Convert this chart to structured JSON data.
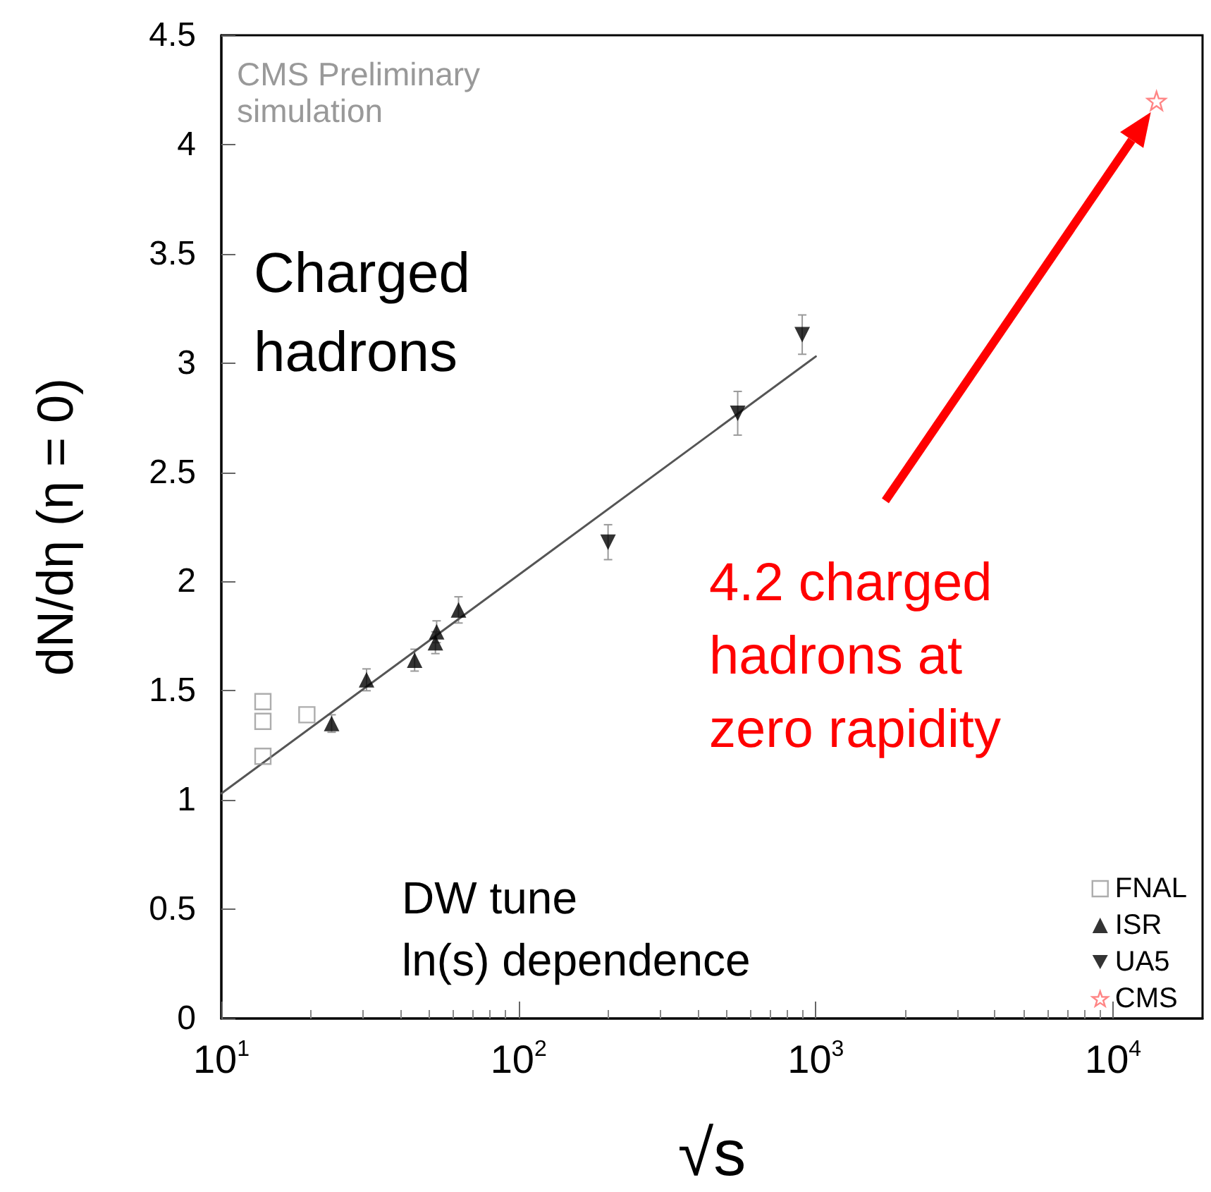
{
  "chart_data": {
    "type": "scatter",
    "xlabel": "√s",
    "ylabel": "dN/dη (η = 0)",
    "log": "x",
    "xlim": [
      10,
      20000
    ],
    "ylim": [
      0,
      4.5
    ],
    "xticks": [
      {
        "value": 10,
        "label": "10$^{1}$"
      },
      {
        "value": 100,
        "label": "10$^{2}$"
      },
      {
        "value": 1000,
        "label": "10$^{3}$"
      },
      {
        "value": 10000,
        "label": "10$^{4}$"
      }
    ],
    "yticks": [
      0,
      0.5,
      1,
      1.5,
      2,
      2.5,
      3,
      3.5,
      4,
      4.5
    ],
    "grid": false,
    "legend": "bottom right",
    "series": [
      {
        "name": "FNAL",
        "color": "#999999",
        "marker": "square",
        "x": [
          13.8,
          13.8,
          13.8,
          19.4
        ],
        "values": [
          1.45,
          1.36,
          1.2,
          1.39
        ]
      },
      {
        "name": "ISR",
        "color": "#000000",
        "marker": "triangle",
        "x": [
          23.5,
          30.8,
          44.7,
          52.5,
          53,
          62.8
        ],
        "values": [
          1.35,
          1.55,
          1.64,
          1.72,
          1.77,
          1.87
        ],
        "errors": [
          0.04,
          0.05,
          0.05,
          0.05,
          0.05,
          0.06
        ]
      },
      {
        "name": "UA5",
        "color": "#000000",
        "marker": "triangle-down",
        "x": [
          200,
          546,
          900
        ],
        "values": [
          2.18,
          2.77,
          3.13
        ],
        "errors": [
          0.08,
          0.1,
          0.09
        ]
      },
      {
        "name": "CMS",
        "color": "#ff6666",
        "marker": "star",
        "x": [
          14000
        ],
        "values": [
          4.2
        ]
      },
      {
        "type": "line",
        "color": "#555555",
        "marker": "none",
        "x": [
          10,
          1000
        ],
        "values": [
          1.03,
          3.03
        ]
      }
    ],
    "annotations": [
      "CMS Preliminary simulation",
      "Charged hadrons",
      "DW tune\nln(s) dependence",
      "4.2 charged hadrons at zero rapidity"
    ]
  }
}
